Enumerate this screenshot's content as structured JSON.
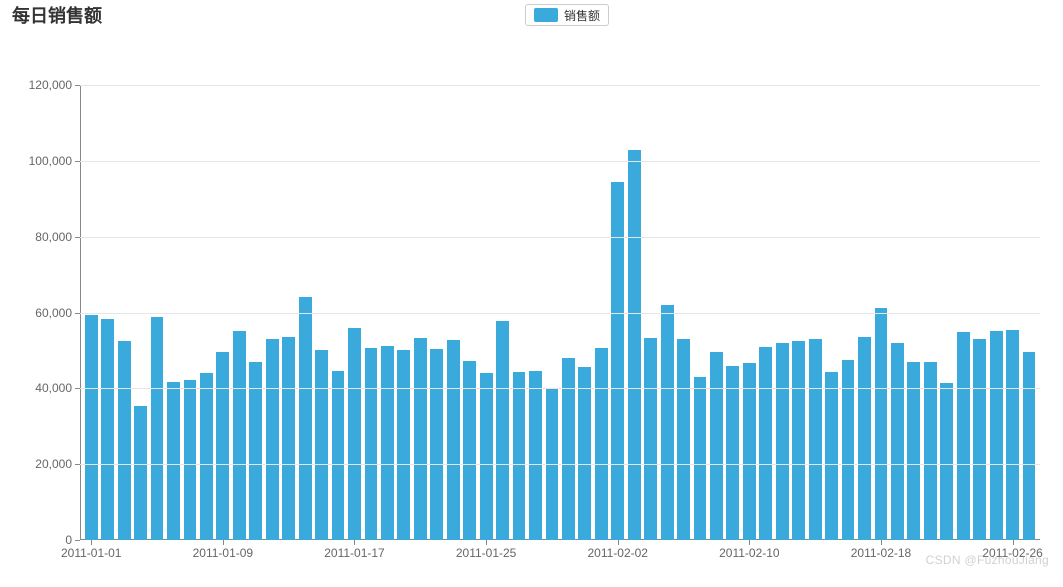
{
  "chart": {
    "type": "bar",
    "title": "每日销售额",
    "title_fontsize": 18,
    "title_color": "#333333",
    "legend": {
      "label": "销售额",
      "swatch_color": "#3aa9db",
      "border_color": "#cccccc",
      "text_color": "#333333",
      "fontsize": 12
    },
    "background_color": "#ffffff",
    "grid_color": "#e6e6e6",
    "axis_color": "#888888",
    "tick_label_color": "#666666",
    "tick_fontsize": 12,
    "bar_color": "#3aa9db",
    "bar_width_ratio": 0.78,
    "ylim": [
      0,
      120000
    ],
    "ytick_step": 20000,
    "ytick_labels": [
      "0",
      "20,000",
      "40,000",
      "60,000",
      "80,000",
      "100,000",
      "120,000"
    ],
    "categories": [
      "2011-01-01",
      "2011-01-02",
      "2011-01-03",
      "2011-01-04",
      "2011-01-05",
      "2011-01-06",
      "2011-01-07",
      "2011-01-08",
      "2011-01-09",
      "2011-01-10",
      "2011-01-11",
      "2011-01-12",
      "2011-01-13",
      "2011-01-14",
      "2011-01-15",
      "2011-01-16",
      "2011-01-17",
      "2011-01-18",
      "2011-01-19",
      "2011-01-20",
      "2011-01-21",
      "2011-01-22",
      "2011-01-23",
      "2011-01-24",
      "2011-01-25",
      "2011-01-26",
      "2011-01-27",
      "2011-01-28",
      "2011-01-29",
      "2011-01-30",
      "2011-01-31",
      "2011-02-01",
      "2011-02-02",
      "2011-02-03",
      "2011-02-04",
      "2011-02-05",
      "2011-02-06",
      "2011-02-07",
      "2011-02-08",
      "2011-02-09",
      "2011-02-10",
      "2011-02-11",
      "2011-02-12",
      "2011-02-13",
      "2011-02-14",
      "2011-02-15",
      "2011-02-16",
      "2011-02-17",
      "2011-02-18",
      "2011-02-19",
      "2011-02-20",
      "2011-02-21",
      "2011-02-22",
      "2011-02-23",
      "2011-02-24",
      "2011-02-25",
      "2011-02-26",
      "2011-02-27"
    ],
    "values": [
      59300,
      58400,
      52600,
      35400,
      58900,
      41800,
      42300,
      44000,
      49600,
      55000,
      47000,
      53000,
      53600,
      64100,
      50200,
      44500,
      56000,
      50700,
      51300,
      50200,
      53400,
      50500,
      52800,
      47300,
      44000,
      57800,
      44300,
      44700,
      40100,
      48000,
      45700,
      50700,
      94500,
      102900,
      53300,
      62000,
      53100,
      42900,
      49500,
      45900,
      46600,
      50900,
      51900,
      52600,
      53000,
      44200,
      47500,
      53600,
      61200,
      51900,
      46900,
      47000,
      41500,
      54800,
      53000,
      55000,
      55500,
      49500
    ],
    "xtick_every": 8,
    "xtick_labels": [
      "2011-01-01",
      "2011-01-09",
      "2011-01-17",
      "2011-01-25",
      "2011-02-02",
      "2011-02-10",
      "2011-02-18",
      "2011-02-26"
    ]
  },
  "watermark": "CSDN @FuzhouJiang"
}
